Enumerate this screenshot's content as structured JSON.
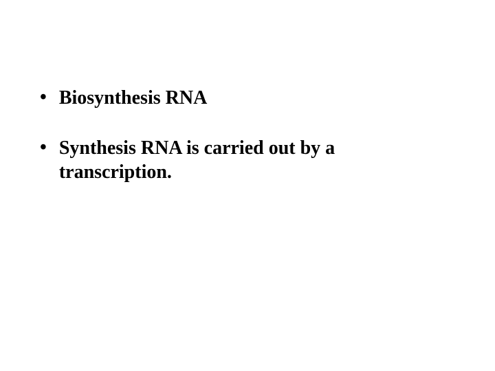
{
  "slide": {
    "bullets": [
      {
        "text": "Biosynthesis RNA"
      },
      {
        "text": " Synthesis RNA is carried out by a transcription."
      }
    ]
  },
  "styling": {
    "background_color": "#ffffff",
    "text_color": "#000000",
    "font_family": "Times New Roman",
    "font_size_pt": 28,
    "font_weight": "bold",
    "bullet_char": "•"
  }
}
